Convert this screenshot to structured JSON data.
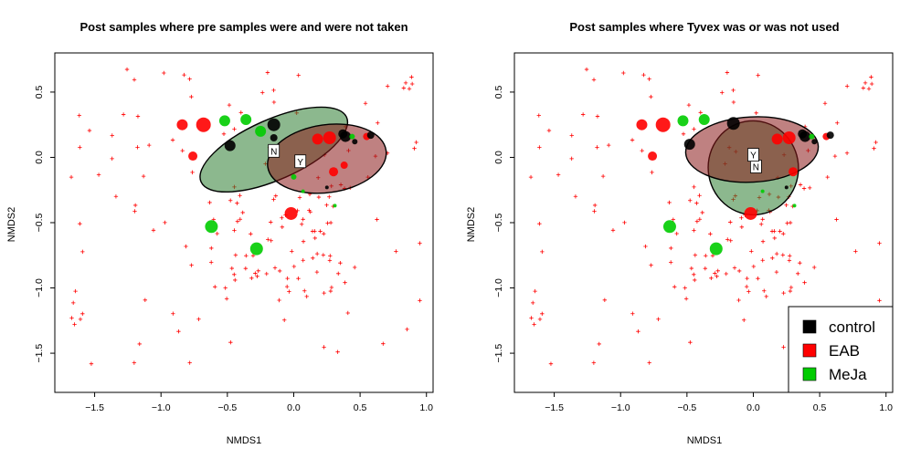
{
  "chart_data": [
    {
      "type": "scatter",
      "title": "Post samples where pre samples were and were not taken",
      "xlabel": "NMDS1",
      "ylabel": "NMDS2",
      "xlim": [
        -1.8,
        1.05
      ],
      "ylim": [
        -1.8,
        0.8
      ],
      "xticks": [
        "-1.5",
        "-1.0",
        "-0.5",
        "0.0",
        "0.5",
        "1.0"
      ],
      "yticks": [
        "0.5",
        "0.0",
        "-0.5",
        "-1.0",
        "-1.5"
      ],
      "ellipses": [
        {
          "label": "N",
          "fill": "#2e7d32",
          "cx": -0.15,
          "cy": 0.06,
          "rx": 0.6,
          "ry": 0.23,
          "angle": -24,
          "label_x": -0.15,
          "label_y": 0.05
        },
        {
          "label": "Y",
          "fill": "#8b1a1a",
          "cx": 0.25,
          "cy": -0.01,
          "rx": 0.45,
          "ry": 0.26,
          "angle": -8,
          "label_x": 0.05,
          "label_y": -0.03
        }
      ],
      "points": [
        {
          "x": -0.52,
          "y": 0.28,
          "size": 6,
          "group": "MeJa"
        },
        {
          "x": -0.36,
          "y": 0.29,
          "size": 6,
          "group": "MeJa"
        },
        {
          "x": -0.25,
          "y": 0.2,
          "size": 6,
          "group": "MeJa"
        },
        {
          "x": -0.48,
          "y": 0.09,
          "size": 6,
          "group": "control"
        },
        {
          "x": -0.15,
          "y": 0.25,
          "size": 7,
          "group": "control"
        },
        {
          "x": -0.15,
          "y": 0.15,
          "size": 4,
          "group": "control"
        },
        {
          "x": -0.84,
          "y": 0.25,
          "size": 6,
          "group": "EAB"
        },
        {
          "x": -0.68,
          "y": 0.25,
          "size": 8,
          "group": "EAB"
        },
        {
          "x": -0.76,
          "y": 0.01,
          "size": 5,
          "group": "EAB"
        },
        {
          "x": 0.18,
          "y": 0.14,
          "size": 6,
          "group": "EAB"
        },
        {
          "x": 0.27,
          "y": 0.15,
          "size": 7,
          "group": "EAB"
        },
        {
          "x": 0.3,
          "y": -0.11,
          "size": 5,
          "group": "EAB"
        },
        {
          "x": 0.39,
          "y": 0.16,
          "size": 6,
          "group": "control"
        },
        {
          "x": 0.37,
          "y": 0.18,
          "size": 5,
          "group": "control"
        },
        {
          "x": 0.46,
          "y": 0.12,
          "size": 3,
          "group": "control"
        },
        {
          "x": 0.44,
          "y": 0.16,
          "size": 3,
          "group": "MeJa"
        },
        {
          "x": 0.55,
          "y": 0.16,
          "size": 4,
          "group": "EAB"
        },
        {
          "x": 0.58,
          "y": 0.17,
          "size": 4,
          "group": "control"
        },
        {
          "x": 0.38,
          "y": -0.06,
          "size": 4,
          "group": "EAB"
        },
        {
          "x": 0.25,
          "y": -0.23,
          "size": 2,
          "group": "control"
        },
        {
          "x": 0.31,
          "y": -0.37,
          "size": 2,
          "group": "MeJa"
        },
        {
          "x": 0.07,
          "y": -0.26,
          "size": 2,
          "group": "MeJa"
        },
        {
          "x": 0.0,
          "y": -0.15,
          "size": 3,
          "group": "MeJa"
        },
        {
          "x": -0.02,
          "y": -0.43,
          "size": 7,
          "group": "EAB"
        },
        {
          "x": -0.62,
          "y": -0.53,
          "size": 7,
          "group": "MeJa"
        },
        {
          "x": -0.28,
          "y": -0.7,
          "size": 7,
          "group": "MeJa"
        }
      ]
    },
    {
      "type": "scatter",
      "title": "Post samples where Tyvex was or was not used",
      "xlabel": "NMDS1",
      "ylabel": "NMDS2",
      "xlim": [
        -1.8,
        1.05
      ],
      "ylim": [
        -1.8,
        0.8
      ],
      "xticks": [
        "-1.5",
        "-1.0",
        "-0.5",
        "0.0",
        "0.5",
        "1.0"
      ],
      "yticks": [
        "0.5",
        "0.0",
        "-0.5",
        "-1.0",
        "-1.5"
      ],
      "ellipses": [
        {
          "label": "N",
          "fill": "#2e7d32",
          "cx": 0.0,
          "cy": -0.08,
          "rx": 0.34,
          "ry": 0.36,
          "angle": -5,
          "label_x": 0.02,
          "label_y": -0.07
        },
        {
          "label": "Y",
          "fill": "#8b1a1a",
          "cx": -0.01,
          "cy": 0.06,
          "rx": 0.5,
          "ry": 0.25,
          "angle": -3,
          "label_x": 0.0,
          "label_y": 0.02
        }
      ],
      "points": [
        {
          "x": -0.53,
          "y": 0.28,
          "size": 6,
          "group": "MeJa"
        },
        {
          "x": -0.37,
          "y": 0.29,
          "size": 6,
          "group": "MeJa"
        },
        {
          "x": -0.48,
          "y": 0.1,
          "size": 6,
          "group": "control"
        },
        {
          "x": -0.15,
          "y": 0.26,
          "size": 7,
          "group": "control"
        },
        {
          "x": -0.84,
          "y": 0.25,
          "size": 6,
          "group": "EAB"
        },
        {
          "x": -0.68,
          "y": 0.25,
          "size": 8,
          "group": "EAB"
        },
        {
          "x": -0.76,
          "y": 0.01,
          "size": 5,
          "group": "EAB"
        },
        {
          "x": 0.18,
          "y": 0.14,
          "size": 6,
          "group": "EAB"
        },
        {
          "x": 0.27,
          "y": 0.15,
          "size": 7,
          "group": "EAB"
        },
        {
          "x": 0.3,
          "y": -0.11,
          "size": 5,
          "group": "EAB"
        },
        {
          "x": 0.39,
          "y": 0.16,
          "size": 6,
          "group": "control"
        },
        {
          "x": 0.37,
          "y": 0.18,
          "size": 5,
          "group": "control"
        },
        {
          "x": 0.46,
          "y": 0.12,
          "size": 3,
          "group": "control"
        },
        {
          "x": 0.44,
          "y": 0.16,
          "size": 3,
          "group": "MeJa"
        },
        {
          "x": 0.55,
          "y": 0.16,
          "size": 4,
          "group": "EAB"
        },
        {
          "x": 0.58,
          "y": 0.17,
          "size": 4,
          "group": "control"
        },
        {
          "x": 0.25,
          "y": -0.23,
          "size": 2,
          "group": "control"
        },
        {
          "x": 0.31,
          "y": -0.37,
          "size": 2,
          "group": "MeJa"
        },
        {
          "x": 0.07,
          "y": -0.26,
          "size": 2,
          "group": "MeJa"
        },
        {
          "x": -0.02,
          "y": -0.43,
          "size": 7,
          "group": "EAB"
        },
        {
          "x": -0.63,
          "y": -0.53,
          "size": 7,
          "group": "MeJa"
        },
        {
          "x": -0.28,
          "y": -0.7,
          "size": 7,
          "group": "MeJa"
        }
      ],
      "legend": {
        "placement": "bottom-right",
        "entries": [
          {
            "label": "control",
            "color": "#000000"
          },
          {
            "label": "EAB",
            "color": "#ff0000"
          },
          {
            "label": "MeJa",
            "color": "#00cc00"
          }
        ]
      }
    }
  ],
  "colors": {
    "control": "#000000",
    "EAB": "#ff0000",
    "MeJa": "#00cc00",
    "crosses": "#ff0000"
  }
}
